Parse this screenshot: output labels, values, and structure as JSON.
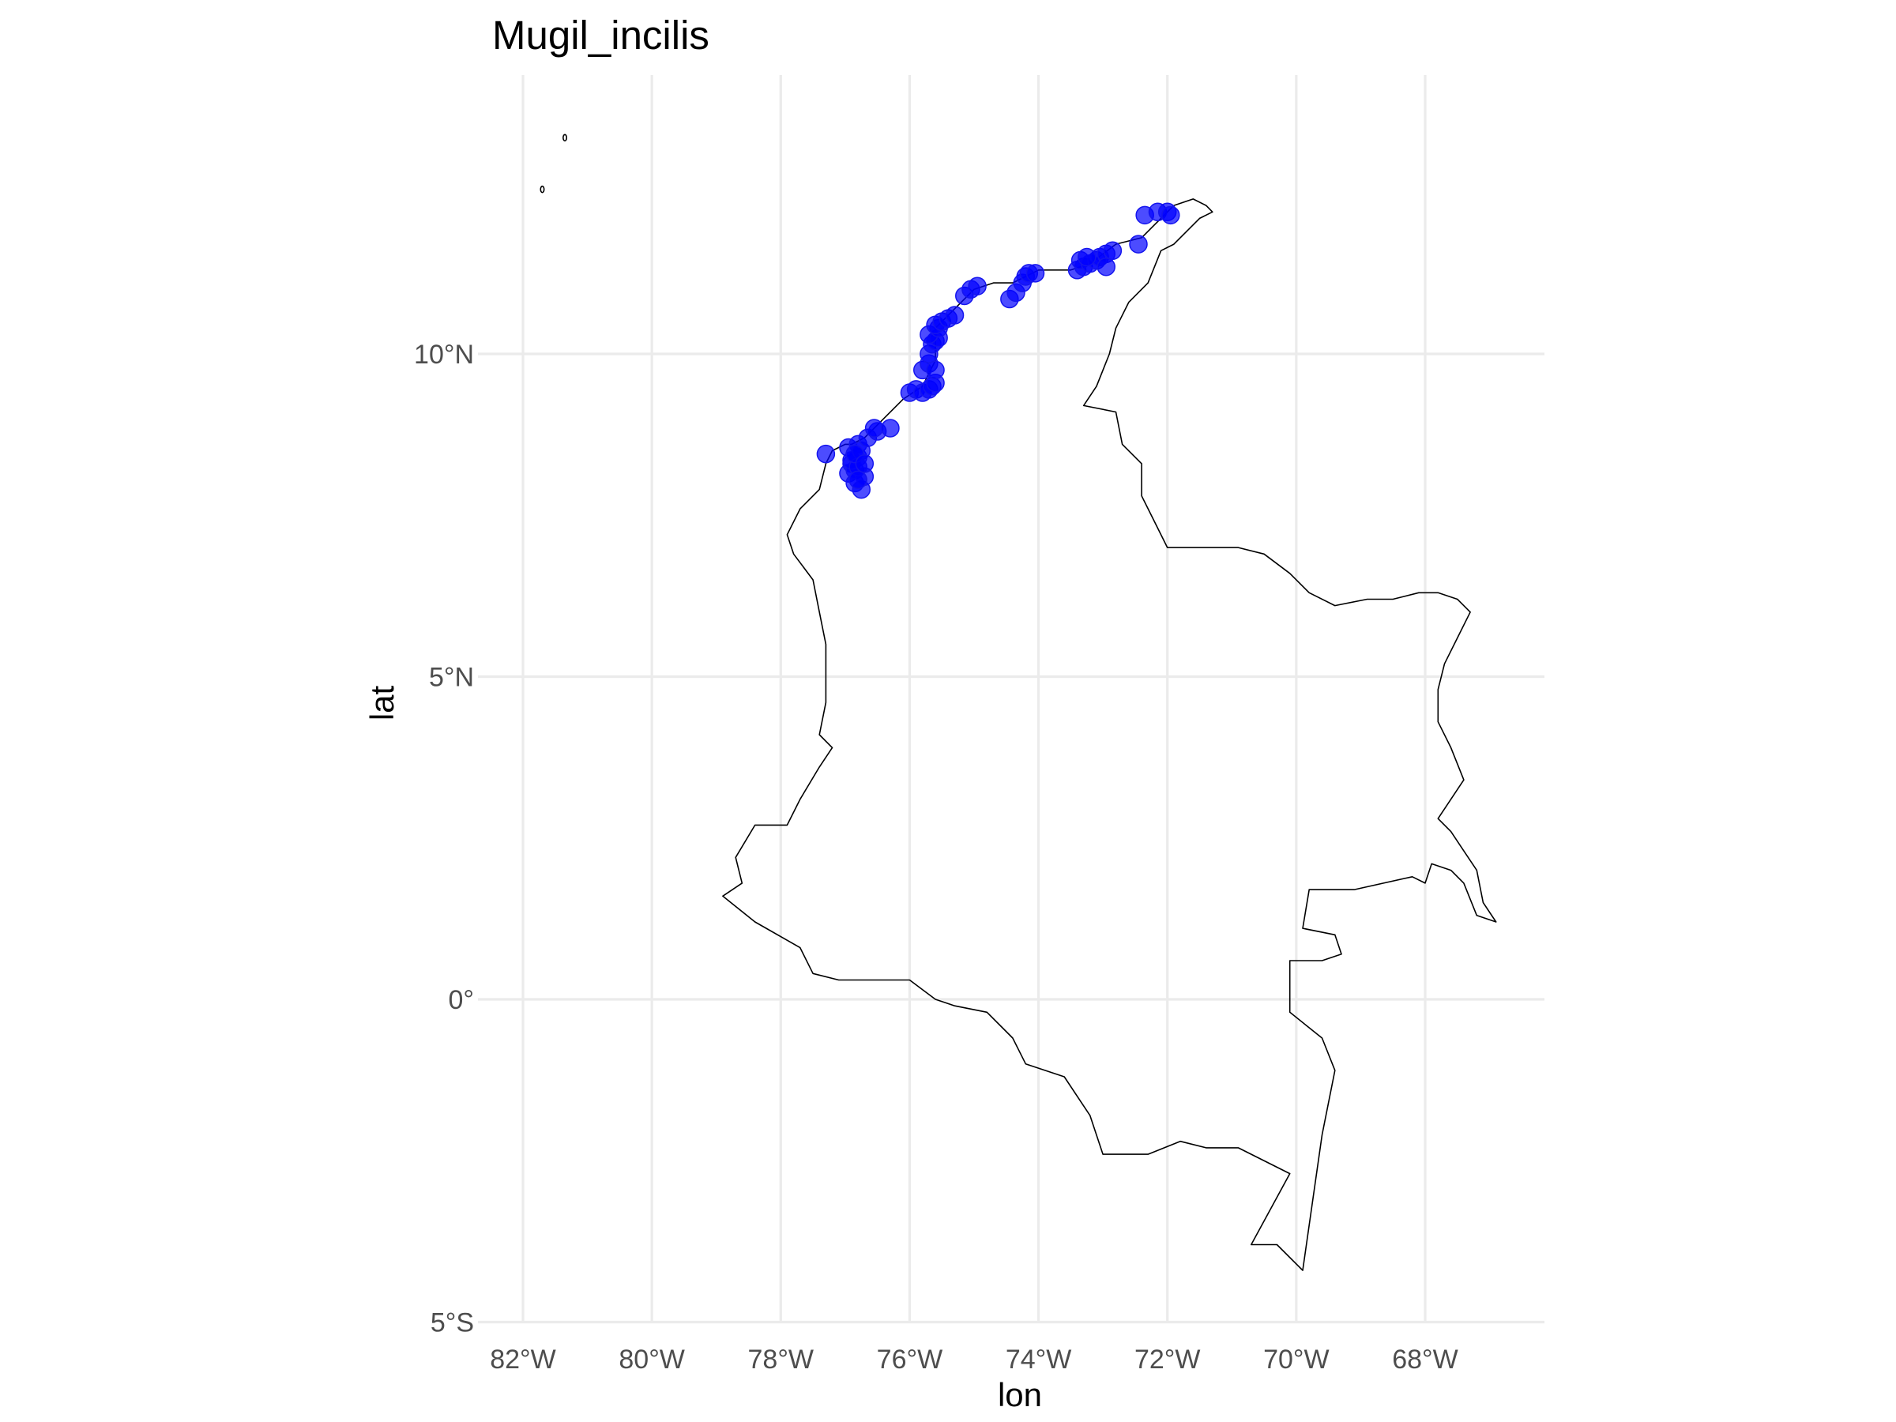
{
  "chart_data": {
    "type": "scatter",
    "title": "Mugil_incilis",
    "xlabel": "lon",
    "ylabel": "lat",
    "xlim": [
      -82.1,
      -66.2
    ],
    "ylim": [
      -5.0,
      14.1
    ],
    "x_ticks": [
      -82,
      -80,
      -78,
      -76,
      -74,
      -72,
      -70,
      -68
    ],
    "x_tick_labels": [
      "82°W",
      "80°W",
      "78°W",
      "76°W",
      "74°W",
      "72°W",
      "70°W",
      "68°W"
    ],
    "y_ticks": [
      -5,
      0,
      5,
      10
    ],
    "y_tick_labels": [
      "5°S",
      "0°",
      "5°N",
      "10°N"
    ],
    "grid": true,
    "point_color": "#0000ff",
    "point_alpha": 0.7,
    "series": [
      {
        "x": [
          -77.3,
          -76.95,
          -76.85,
          -76.75,
          -76.9,
          -76.8,
          -76.95,
          -76.8,
          -76.85,
          -76.7,
          -76.9,
          -76.8,
          -76.75,
          -76.85,
          -76.8,
          -76.7,
          -76.65,
          -76.5,
          -76.55,
          -76.3,
          -76.0,
          -75.9,
          -75.8,
          -75.7,
          -75.65,
          -75.6,
          -75.8,
          -75.7,
          -75.6,
          -75.7,
          -75.65,
          -75.6,
          -75.55,
          -75.7,
          -75.55,
          -75.6,
          -75.5,
          -75.4,
          -75.3,
          -75.15,
          -75.05,
          -74.95,
          -74.45,
          -74.35,
          -74.25,
          -74.2,
          -74.15,
          -74.05,
          -73.4,
          -73.3,
          -73.35,
          -73.2,
          -73.1,
          -73.05,
          -72.95,
          -72.85,
          -72.95,
          -73.25,
          -72.45,
          -72.35,
          -72.15,
          -72.0,
          -71.95
        ],
        "y": [
          8.45,
          8.15,
          8.0,
          7.9,
          8.3,
          8.4,
          8.55,
          8.6,
          8.2,
          8.1,
          8.35,
          8.25,
          8.5,
          8.45,
          8.05,
          8.3,
          8.7,
          8.8,
          8.85,
          8.85,
          9.4,
          9.45,
          9.4,
          9.45,
          9.5,
          9.55,
          9.75,
          9.85,
          9.75,
          10.0,
          10.15,
          10.2,
          10.25,
          10.3,
          10.4,
          10.45,
          10.5,
          10.55,
          10.6,
          10.9,
          11.0,
          11.05,
          10.85,
          10.95,
          11.1,
          11.2,
          11.25,
          11.25,
          11.3,
          11.35,
          11.45,
          11.4,
          11.45,
          11.5,
          11.55,
          11.6,
          11.35,
          11.5,
          11.7,
          12.15,
          12.2,
          12.2,
          12.15
        ]
      }
    ],
    "outline_color": "#000000"
  }
}
